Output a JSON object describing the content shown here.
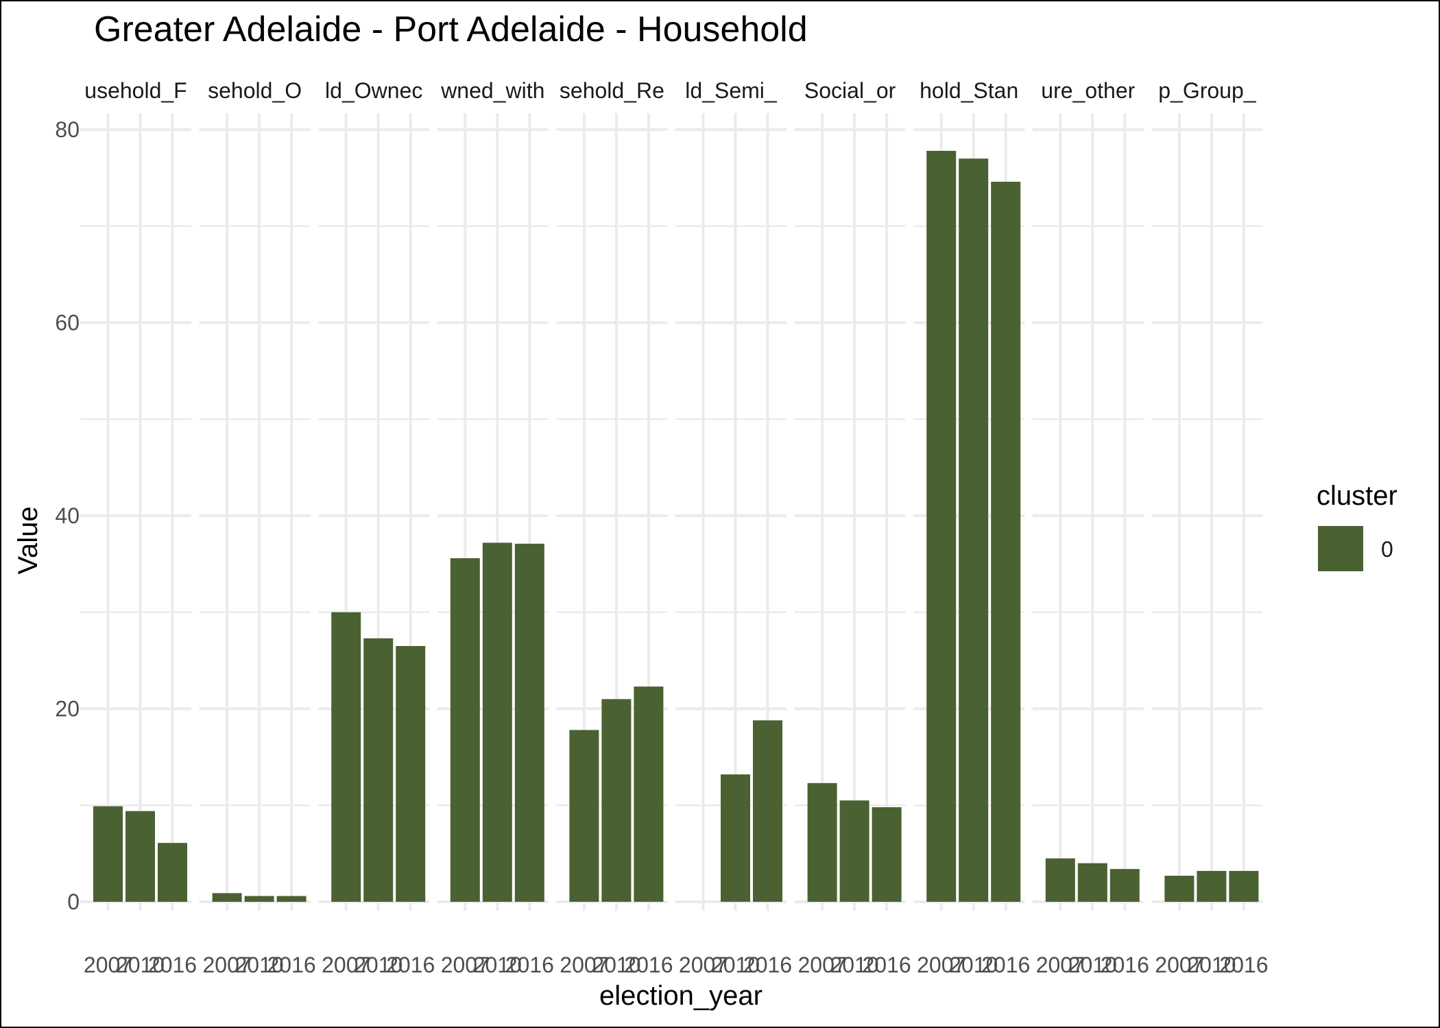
{
  "chart_data": {
    "type": "bar",
    "title": "Greater Adelaide - Port Adelaide - Household",
    "xlabel": "election_year",
    "ylabel": "Value",
    "ylim": [
      0,
      80
    ],
    "yticks": [
      0,
      20,
      40,
      60,
      80
    ],
    "grid": true,
    "legend": {
      "title": "cluster",
      "position": "right",
      "entries": [
        {
          "label": "0",
          "color": "#4a6132"
        }
      ]
    },
    "categories": [
      "2007",
      "2010",
      "2016"
    ],
    "facets": [
      {
        "label": "usehold_F",
        "values": [
          9.9,
          9.4,
          6.1
        ]
      },
      {
        "label": "sehold_O",
        "values": [
          0.9,
          0.6,
          0.6
        ]
      },
      {
        "label": "ld_Ownec",
        "values": [
          30.0,
          27.3,
          26.5
        ]
      },
      {
        "label": "wned_with",
        "values": [
          35.6,
          37.2,
          37.1
        ]
      },
      {
        "label": "sehold_Re",
        "values": [
          17.8,
          21.0,
          22.3
        ]
      },
      {
        "label": "ld_Semi_",
        "values": [
          null,
          13.2,
          18.8
        ]
      },
      {
        "label": "Social_or",
        "values": [
          12.3,
          10.5,
          9.8
        ]
      },
      {
        "label": "hold_Stan",
        "values": [
          77.8,
          77.0,
          74.6
        ]
      },
      {
        "label": "ure_other",
        "values": [
          4.5,
          4.0,
          3.4
        ]
      },
      {
        "label": "p_Group_",
        "values": [
          2.7,
          3.2,
          3.2
        ]
      }
    ]
  },
  "colors": {
    "bar": "#4a6132",
    "grid": "#ebebeb"
  }
}
